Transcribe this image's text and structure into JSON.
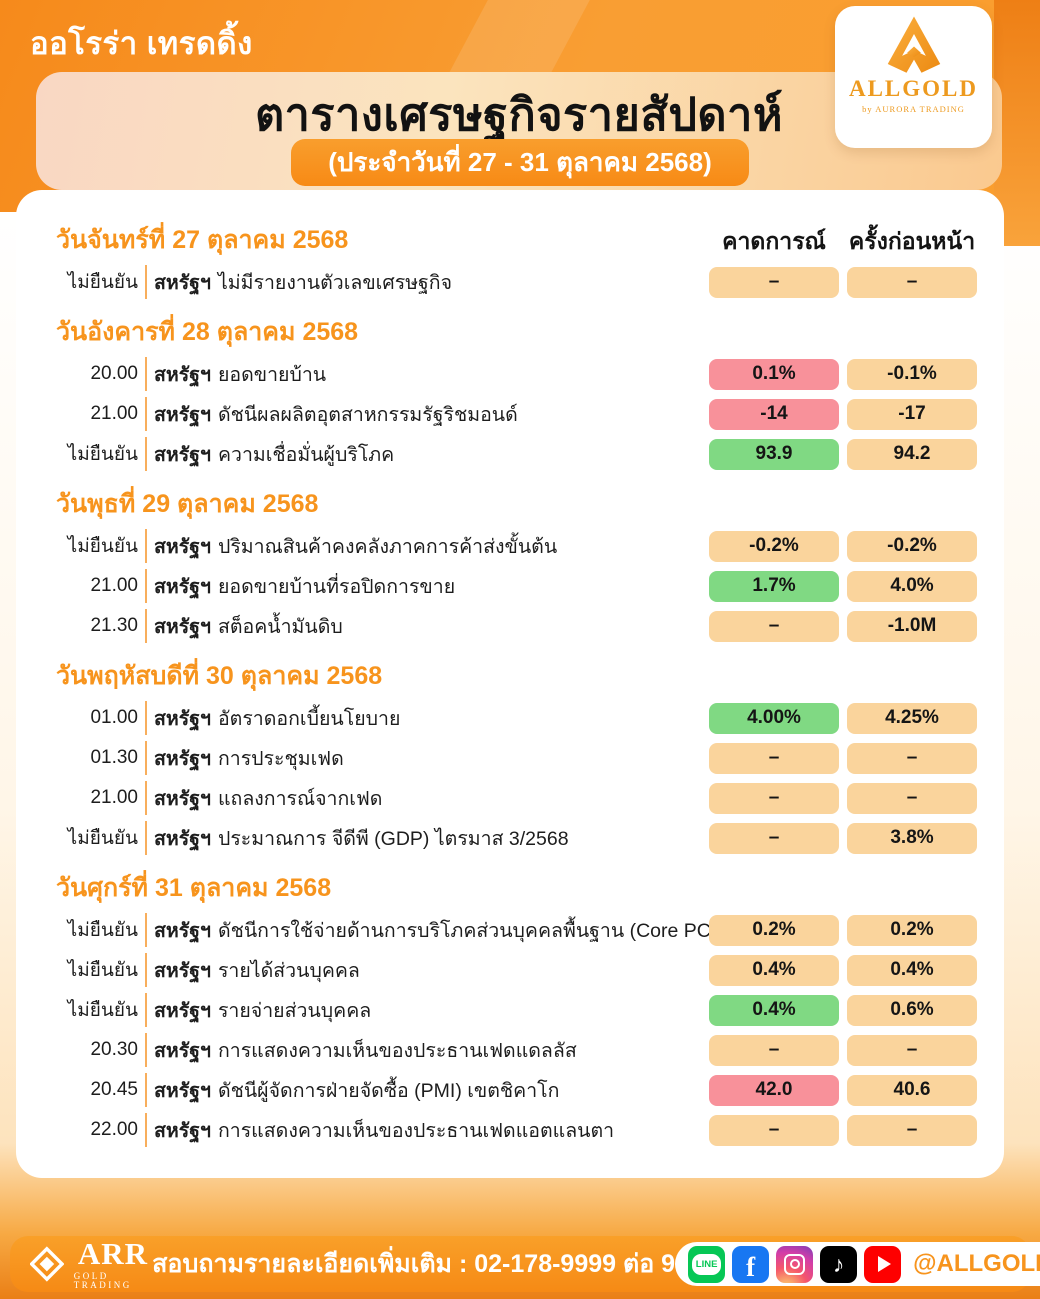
{
  "header": {
    "brand_badge": "ออโรร่า เทรดดิ้ง",
    "title": "ตารางเศรษฐกิจรายสัปดาห์",
    "subtitle": "(ประจำวันที่ 27 - 31  ตุลาคม 2568)",
    "logo": {
      "name": "ALLGOLD",
      "byline": "by AURORA TRADING",
      "mark": "allgold-a-icon"
    }
  },
  "table": {
    "columns": {
      "forecast": "คาดการณ์",
      "previous": "ครั้งก่อนหน้า"
    },
    "sections": [
      {
        "date": "วันจันทร์ที่ 27 ตุลาคม 2568",
        "rows": [
          {
            "time": "ไม่ยืนยัน",
            "country": "สหรัฐฯ",
            "event": "ไม่มีรายงานตัวเลขเศรษฐกิจ",
            "forecast": "–",
            "forecast_color": "neutral",
            "previous": "–",
            "previous_color": "neutral"
          }
        ]
      },
      {
        "date": "วันอังคารที่ 28 ตุลาคม 2568",
        "rows": [
          {
            "time": "20.00",
            "country": "สหรัฐฯ",
            "event": "ยอดขายบ้าน",
            "forecast": "0.1%",
            "forecast_color": "bad",
            "previous": "-0.1%",
            "previous_color": "neutral"
          },
          {
            "time": "21.00",
            "country": "สหรัฐฯ",
            "event": "ดัชนีผลผลิตอุตสาหกรรมรัฐริชมอนด์",
            "forecast": "-14",
            "forecast_color": "bad",
            "previous": "-17",
            "previous_color": "neutral"
          },
          {
            "time": "ไม่ยืนยัน",
            "country": "สหรัฐฯ",
            "event": "ความเชื่อมั่นผู้บริโภค",
            "forecast": "93.9",
            "forecast_color": "good",
            "previous": "94.2",
            "previous_color": "neutral"
          }
        ]
      },
      {
        "date": "วันพุธที่ 29 ตุลาคม 2568",
        "rows": [
          {
            "time": "ไม่ยืนยัน",
            "country": "สหรัฐฯ",
            "event": "ปริมาณสินค้าคงคลังภาคการค้าส่งขั้นต้น",
            "forecast": "-0.2%",
            "forecast_color": "neutral",
            "previous": "-0.2%",
            "previous_color": "neutral"
          },
          {
            "time": "21.00",
            "country": "สหรัฐฯ",
            "event": "ยอดขายบ้านที่รอปิดการขาย",
            "forecast": "1.7%",
            "forecast_color": "good",
            "previous": "4.0%",
            "previous_color": "neutral"
          },
          {
            "time": "21.30",
            "country": "สหรัฐฯ",
            "event": "สต็อคน้ำมันดิบ",
            "forecast": "–",
            "forecast_color": "neutral",
            "previous": "-1.0M",
            "previous_color": "neutral"
          }
        ]
      },
      {
        "date": "วันพฤหัสบดีที่ 30 ตุลาคม 2568",
        "rows": [
          {
            "time": "01.00",
            "country": "สหรัฐฯ",
            "event": "อัตราดอกเบี้ยนโยบาย",
            "forecast": "4.00%",
            "forecast_color": "good",
            "previous": "4.25%",
            "previous_color": "neutral"
          },
          {
            "time": "01.30",
            "country": "สหรัฐฯ",
            "event": "การประชุมเฟด",
            "forecast": "–",
            "forecast_color": "neutral",
            "previous": "–",
            "previous_color": "neutral"
          },
          {
            "time": "21.00",
            "country": "สหรัฐฯ",
            "event": "แถลงการณ์จากเฟด",
            "forecast": "–",
            "forecast_color": "neutral",
            "previous": "–",
            "previous_color": "neutral"
          },
          {
            "time": "ไม่ยืนยัน",
            "country": "สหรัฐฯ",
            "event": "ประมาณการ จีดีพี (GDP) ไตรมาส 3/2568",
            "forecast": "–",
            "forecast_color": "neutral",
            "previous": "3.8%",
            "previous_color": "neutral"
          }
        ]
      },
      {
        "date": "วันศุกร์ที่ 31 ตุลาคม 2568",
        "rows": [
          {
            "time": "ไม่ยืนยัน",
            "country": "สหรัฐฯ",
            "event": "ดัชนีการใช้จ่ายด้านการบริโภคส่วนบุคคลพื้นฐาน (Core PCE)",
            "forecast": "0.2%",
            "forecast_color": "neutral",
            "previous": "0.2%",
            "previous_color": "neutral"
          },
          {
            "time": "ไม่ยืนยัน",
            "country": "สหรัฐฯ",
            "event": "รายได้ส่วนบุคคล",
            "forecast": "0.4%",
            "forecast_color": "neutral",
            "previous": "0.4%",
            "previous_color": "neutral"
          },
          {
            "time": "ไม่ยืนยัน",
            "country": "สหรัฐฯ",
            "event": "รายจ่ายส่วนบุคคล",
            "forecast": "0.4%",
            "forecast_color": "good",
            "previous": "0.6%",
            "previous_color": "neutral"
          },
          {
            "time": "20.30",
            "country": "สหรัฐฯ",
            "event": "การแสดงความเห็นของประธานเฟดแดลลัส",
            "forecast": "–",
            "forecast_color": "neutral",
            "previous": "–",
            "previous_color": "neutral"
          },
          {
            "time": "20.45",
            "country": "สหรัฐฯ",
            "event": "ดัชนีผู้จัดการฝ่ายจัดซื้อ (PMI) เขตชิคาโก",
            "forecast": "42.0",
            "forecast_color": "bad",
            "previous": "40.6",
            "previous_color": "neutral"
          },
          {
            "time": "22.00",
            "country": "สหรัฐฯ",
            "event": "การแสดงความเห็นของประธานเฟดแอตแลนตา",
            "forecast": "–",
            "forecast_color": "neutral",
            "previous": "–",
            "previous_color": "neutral"
          }
        ]
      }
    ]
  },
  "footer": {
    "logo": {
      "name": "ARR",
      "sub": "GOLD TRADING",
      "mark": "arr-diamond-icon"
    },
    "contact": "สอบถามรายละเอียดเพิ่มเติม : 02-178-9999 ต่อ 9",
    "handle": "@ALLGOLD",
    "social_icons": [
      {
        "name": "line-icon",
        "label": "LINE",
        "color": "#06C755"
      },
      {
        "name": "facebook-icon",
        "label": "f",
        "color": "#1877F2"
      },
      {
        "name": "instagram-icon",
        "label": "",
        "color": "#C837AB"
      },
      {
        "name": "tiktok-icon",
        "label": "♪",
        "color": "#000000"
      },
      {
        "name": "youtube-icon",
        "label": "",
        "color": "#FF0000"
      }
    ]
  },
  "colors": {
    "accent_orange": "#F7941D",
    "pill_neutral": "#FAD49C",
    "pill_bad": "#F8919A",
    "pill_good": "#80D983"
  }
}
